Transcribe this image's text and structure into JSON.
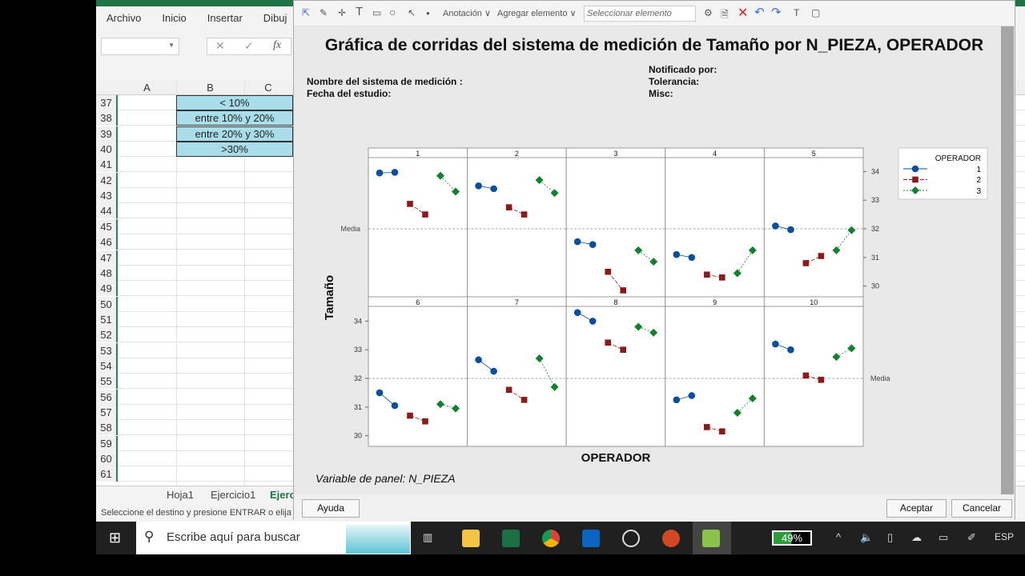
{
  "excel": {
    "ribbon_tabs": [
      "Archivo",
      "Inicio",
      "Insertar",
      "Dibuj"
    ],
    "formula_icons": [
      "cancel-icon",
      "check-icon",
      "fx-icon"
    ],
    "fx_label": "fx",
    "columns": [
      "A",
      "B",
      "C"
    ],
    "rows": [
      "37",
      "38",
      "39",
      "40",
      "41",
      "42",
      "43",
      "44",
      "45",
      "46",
      "47",
      "48",
      "49",
      "50",
      "51",
      "52",
      "53",
      "54",
      "55",
      "56",
      "57",
      "58",
      "59",
      "60",
      "61"
    ],
    "b_cells": [
      "< 10%",
      "entre 10%  y 20%",
      "entre 20%  y 30%",
      ">30%"
    ],
    "sheet_tabs": [
      "Hoja1",
      "Ejercicio1",
      "Ejerc"
    ],
    "status": "Seleccione el destino y presione ENTRAR o elija Pega"
  },
  "dialog": {
    "toolbar": {
      "annotation": "Anotación",
      "add_element": "Agregar elemento",
      "select_placeholder": "Seleccionar elemento"
    },
    "title": "Gráfica de corridas del sistema de medición de Tamaño por N_PIEZA, OPERADOR",
    "meta_left": [
      "Nombre del sistema de medición :",
      "Fecha del estudio:"
    ],
    "meta_right": [
      "Notificado por:",
      "Tolerancia:",
      "Misc:"
    ],
    "panel_variable": "Variable de panel: N_PIEZA",
    "buttons": {
      "help": "Ayuda",
      "accept": "Aceptar",
      "cancel": "Cancelar"
    }
  },
  "chart_data": {
    "type": "line",
    "title": "Gráfica de corridas del sistema de medición de Tamaño por N_PIEZA, OPERADOR",
    "xlabel": "OPERADOR",
    "ylabel": "Tamaño",
    "ylim": [
      29.6,
      34.5
    ],
    "yticks": [
      30,
      31,
      32,
      33,
      34
    ],
    "mean": 32,
    "mean_label": "Media",
    "legend": {
      "title": "OPERADOR",
      "placement": "right"
    },
    "panels": [
      "1",
      "2",
      "3",
      "4",
      "5",
      "6",
      "7",
      "8",
      "9",
      "10"
    ],
    "series": [
      {
        "name": "1",
        "color": "#0b4f9c",
        "marker": "circle",
        "values": [
          [
            33.95,
            33.97
          ],
          [
            33.5,
            33.4
          ],
          [
            31.55,
            31.45
          ],
          [
            31.1,
            31.0
          ],
          [
            32.1,
            31.97
          ],
          [
            31.5,
            31.05
          ],
          [
            32.65,
            32.25
          ],
          [
            34.3,
            34.0
          ],
          [
            31.25,
            31.4
          ],
          [
            33.2,
            33.0
          ]
        ]
      },
      {
        "name": "2",
        "color": "#8b1a1a",
        "marker": "square",
        "values": [
          [
            32.87,
            32.5
          ],
          [
            32.75,
            32.5
          ],
          [
            30.5,
            29.85
          ],
          [
            30.4,
            30.3
          ],
          [
            30.8,
            31.05
          ],
          [
            30.7,
            30.5
          ],
          [
            31.6,
            31.25
          ],
          [
            33.25,
            33.0
          ],
          [
            30.3,
            30.15
          ],
          [
            32.1,
            31.95
          ]
        ]
      },
      {
        "name": "3",
        "color": "#12802f",
        "marker": "diamond",
        "values": [
          [
            33.85,
            33.3
          ],
          [
            33.7,
            33.25
          ],
          [
            31.25,
            30.85
          ],
          [
            30.45,
            31.25
          ],
          [
            31.25,
            31.95
          ],
          [
            31.1,
            30.95
          ],
          [
            32.7,
            31.7
          ],
          [
            33.8,
            33.6
          ],
          [
            30.8,
            31.3
          ],
          [
            32.75,
            33.05
          ]
        ]
      }
    ]
  },
  "taskbar": {
    "search_placeholder": "Escribe aquí para buscar",
    "battery": "49%",
    "language": "ESP"
  }
}
